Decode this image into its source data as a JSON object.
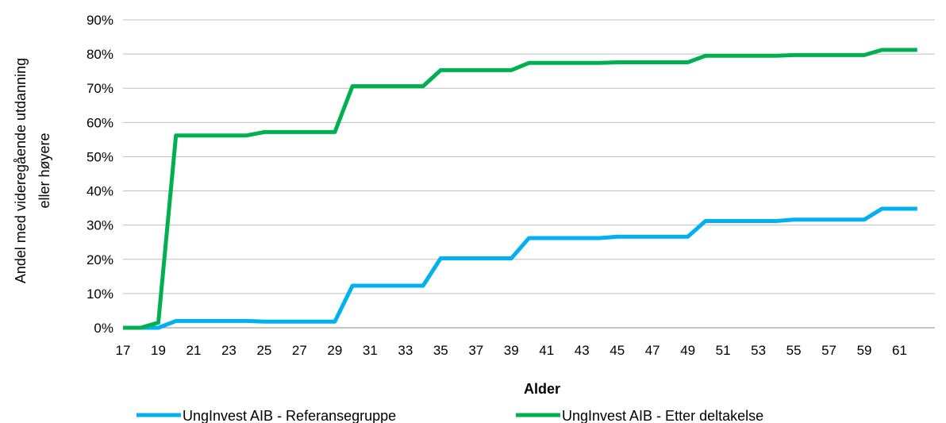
{
  "chart_data": {
    "type": "line",
    "xlabel": "Alder",
    "ylabel_line1": "Andel med videregående utdanning",
    "ylabel_line2": "eller høyere",
    "x": [
      17,
      18,
      19,
      20,
      21,
      22,
      23,
      24,
      25,
      26,
      27,
      28,
      29,
      30,
      31,
      32,
      33,
      34,
      35,
      36,
      37,
      38,
      39,
      40,
      41,
      42,
      43,
      44,
      45,
      46,
      47,
      48,
      49,
      50,
      51,
      52,
      53,
      54,
      55,
      56,
      57,
      58,
      59,
      60,
      61,
      62
    ],
    "xtick_labels": [
      "17",
      "19",
      "21",
      "23",
      "25",
      "27",
      "29",
      "31",
      "33",
      "35",
      "37",
      "39",
      "41",
      "43",
      "45",
      "47",
      "49",
      "51",
      "53",
      "55",
      "57",
      "59",
      "61"
    ],
    "ytick_labels": [
      "0%",
      "10%",
      "20%",
      "30%",
      "40%",
      "50%",
      "60%",
      "70%",
      "80%",
      "90%"
    ],
    "ylim": [
      0,
      90
    ],
    "grid": true,
    "legend_position": "bottom",
    "series": [
      {
        "name": "UngInvest AIB - Referansegruppe",
        "color": "#00B0F0",
        "values": [
          0,
          0,
          0,
          2,
          2,
          2,
          2,
          2,
          1.8,
          1.8,
          1.8,
          1.8,
          1.8,
          12.3,
          12.3,
          12.3,
          12.3,
          12.3,
          20.3,
          20.3,
          20.3,
          20.3,
          20.3,
          26.2,
          26.2,
          26.2,
          26.2,
          26.2,
          26.6,
          26.6,
          26.6,
          26.6,
          26.6,
          31.2,
          31.2,
          31.2,
          31.2,
          31.2,
          31.6,
          31.6,
          31.6,
          31.6,
          31.6,
          34.8,
          34.8,
          34.8
        ]
      },
      {
        "name": "UngInvest AIB - Etter deltakelse",
        "color": "#00B050",
        "values": [
          0,
          0,
          1.5,
          56.2,
          56.2,
          56.2,
          56.2,
          56.2,
          57.2,
          57.2,
          57.2,
          57.2,
          57.2,
          70.6,
          70.6,
          70.6,
          70.6,
          70.6,
          75.3,
          75.3,
          75.3,
          75.3,
          75.3,
          77.4,
          77.4,
          77.4,
          77.4,
          77.4,
          77.6,
          77.6,
          77.6,
          77.6,
          77.6,
          79.5,
          79.5,
          79.5,
          79.5,
          79.5,
          79.7,
          79.7,
          79.7,
          79.7,
          79.7,
          81.2,
          81.2,
          81.2
        ]
      }
    ]
  }
}
